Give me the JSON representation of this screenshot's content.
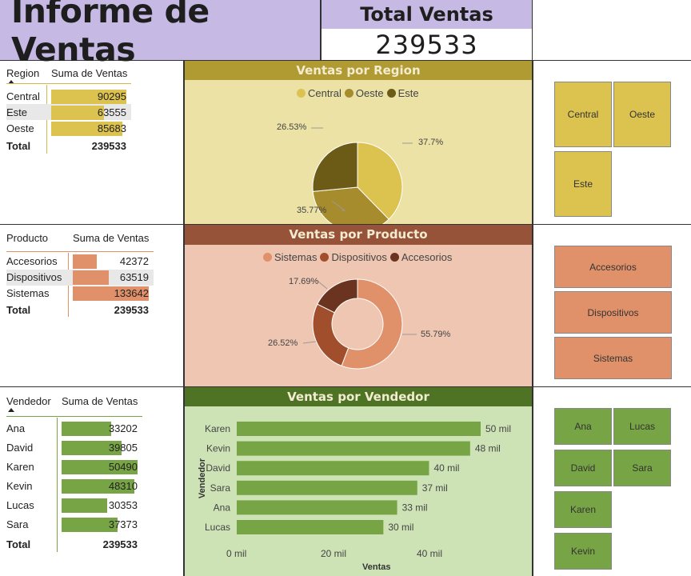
{
  "title": "Informe de Ventas",
  "kpi": {
    "label": "Total Ventas",
    "value": "239533"
  },
  "region_table": {
    "col1": "Region",
    "col2": "Suma de Ventas",
    "rows": [
      {
        "name": "Central",
        "value": "90295",
        "num": 90295
      },
      {
        "name": "Este",
        "value": "63555",
        "num": 63555
      },
      {
        "name": "Oeste",
        "value": "85683",
        "num": 85683
      }
    ],
    "total_label": "Total",
    "total": "239533"
  },
  "product_table": {
    "col1": "Producto",
    "col2": "Suma de Ventas",
    "rows": [
      {
        "name": "Accesorios",
        "value": "42372",
        "num": 42372
      },
      {
        "name": "Dispositivos",
        "value": "63519",
        "num": 63519
      },
      {
        "name": "Sistemas",
        "value": "133642",
        "num": 133642
      }
    ],
    "total_label": "Total",
    "total": "239533"
  },
  "seller_table": {
    "col1": "Vendedor",
    "col2": "Suma de Ventas",
    "rows": [
      {
        "name": "Ana",
        "value": "33202",
        "num": 33202
      },
      {
        "name": "David",
        "value": "39805",
        "num": 39805
      },
      {
        "name": "Karen",
        "value": "50490",
        "num": 50490
      },
      {
        "name": "Kevin",
        "value": "48310",
        "num": 48310
      },
      {
        "name": "Lucas",
        "value": "30353",
        "num": 30353
      },
      {
        "name": "Sara",
        "value": "37373",
        "num": 37373
      }
    ],
    "total_label": "Total",
    "total": "239533"
  },
  "region_chart": {
    "title": "Ventas por Region",
    "legend": [
      "Central",
      "Oeste",
      "Este"
    ],
    "colors": [
      "#dcc24f",
      "#a68c2c",
      "#6c5a17"
    ],
    "labels": [
      "37.7%",
      "35.77%",
      "26.53%"
    ]
  },
  "product_chart": {
    "title": "Ventas por Producto",
    "legend": [
      "Sistemas",
      "Dispositivos",
      "Accesorios"
    ],
    "colors": [
      "#e0916a",
      "#a14e2d",
      "#6a3420"
    ],
    "labels": [
      "55.79%",
      "26.52%",
      "17.69%"
    ]
  },
  "seller_chart": {
    "title": "Ventas por Vendedor",
    "ylabel": "Vendedor",
    "xlabel": "Ventas",
    "ticks": [
      "0 mil",
      "20 mil",
      "40 mil"
    ],
    "bar_color": "#77a444"
  },
  "slicers": {
    "region": [
      "Central",
      "Oeste",
      "Este"
    ],
    "product": [
      "Accesorios",
      "Dispositivos",
      "Sistemas"
    ],
    "seller": [
      "Ana",
      "Lucas",
      "David",
      "Sara",
      "Karen",
      "Kevin"
    ]
  },
  "chart_data": [
    {
      "type": "pie",
      "title": "Ventas por Region",
      "categories": [
        "Central",
        "Oeste",
        "Este"
      ],
      "values": [
        90295,
        85683,
        63555
      ],
      "percent_labels": [
        "37.7%",
        "35.77%",
        "26.53%"
      ],
      "legend": "top"
    },
    {
      "type": "pie",
      "title": "Ventas por Producto",
      "categories": [
        "Sistemas",
        "Dispositivos",
        "Accesorios"
      ],
      "values": [
        133642,
        63519,
        42372
      ],
      "percent_labels": [
        "55.79%",
        "26.52%",
        "17.69%"
      ],
      "legend": "top"
    },
    {
      "type": "bar",
      "title": "Ventas por Vendedor",
      "categories": [
        "Karen",
        "Kevin",
        "David",
        "Sara",
        "Ana",
        "Lucas"
      ],
      "values": [
        50490,
        48310,
        39805,
        37373,
        33202,
        30353
      ],
      "data_labels": [
        "50 mil",
        "48 mil",
        "40 mil",
        "37 mil",
        "33 mil",
        "30 mil"
      ],
      "xlabel": "Ventas",
      "ylabel": "Vendedor",
      "xlim": [
        0,
        50000
      ],
      "xticks": [
        "0 mil",
        "20 mil",
        "40 mil"
      ]
    }
  ]
}
